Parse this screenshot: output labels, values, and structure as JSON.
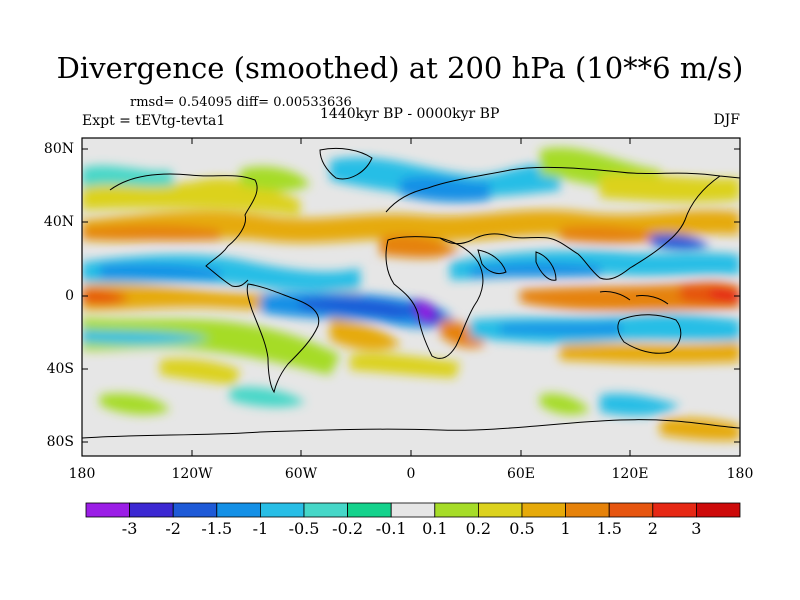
{
  "title": "Divergence (smoothed) at 200 hPa (10**6 m/s)",
  "stats": "rmsd= 0.54095 diff= 0.00533636",
  "experiment": "Expt = tEVtg-tevta1",
  "period": "1440kyr BP - 0000kyr BP",
  "season": "DJF",
  "lat_ticks": [
    "80N",
    "40N",
    "0",
    "40S",
    "80S"
  ],
  "lon_ticks": [
    "180",
    "120W",
    "60W",
    "0",
    "60E",
    "120E",
    "180"
  ],
  "colorbar": {
    "labels": [
      "-3",
      "-2",
      "-1.5",
      "-1",
      "-0.5",
      "-0.2",
      "-0.1",
      "0.1",
      "0.2",
      "0.5",
      "1",
      "1.5",
      "2",
      "3"
    ],
    "colors": [
      "#9b1ee6",
      "#3c28d2",
      "#1e5ad7",
      "#1490e6",
      "#28bee6",
      "#46d7c8",
      "#14d28c",
      "#e6e6e6",
      "#a6dc28",
      "#dcd21e",
      "#e6aa0a",
      "#e6820a",
      "#e6550f",
      "#e62814",
      "#cd0a0a"
    ]
  }
}
